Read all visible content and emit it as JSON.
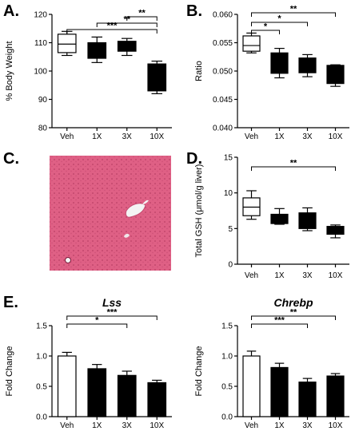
{
  "panels": {
    "A": "A.",
    "B": "B.",
    "C": "C.",
    "D": "D.",
    "E": "E."
  },
  "chart_data": [
    {
      "id": "A",
      "type": "box",
      "ylabel": "% Body Weight",
      "ylim": [
        80,
        120
      ],
      "yticks": [
        80,
        90,
        100,
        110,
        120
      ],
      "categories": [
        "Veh",
        "1X",
        "3X",
        "10X"
      ],
      "boxes": [
        {
          "min": 105.5,
          "q1": 106.5,
          "median": 109.5,
          "q3": 113,
          "max": 114
        },
        {
          "min": 103,
          "q1": 104.5,
          "median": 108,
          "q3": 110,
          "max": 112
        },
        {
          "min": 105.5,
          "q1": 107,
          "median": 108.5,
          "q3": 110.5,
          "max": 111.5
        },
        {
          "min": 92,
          "q1": 93,
          "median": 102,
          "q3": 102.5,
          "max": 103.5
        }
      ],
      "fills": [
        "#ffffff",
        "#000000",
        "#000000",
        "#000000"
      ],
      "significance": [
        {
          "from": 0,
          "to": 3,
          "label": "***"
        },
        {
          "from": 1,
          "to": 3,
          "label": "**"
        },
        {
          "from": 2,
          "to": 3,
          "label": "**"
        }
      ]
    },
    {
      "id": "B",
      "type": "box",
      "ylabel": "Ratio",
      "ylim": [
        0.04,
        0.06
      ],
      "yticks": [
        0.04,
        0.045,
        0.05,
        0.055,
        0.06
      ],
      "ytick_labels": [
        "0.040",
        "0.045",
        "0.050",
        "0.055",
        "0.060"
      ],
      "categories": [
        "Veh",
        "1X",
        "3X",
        "10X"
      ],
      "boxes": [
        {
          "min": 0.0532,
          "q1": 0.0535,
          "median": 0.0545,
          "q3": 0.0562,
          "max": 0.0567
        },
        {
          "min": 0.0488,
          "q1": 0.0496,
          "median": 0.0515,
          "q3": 0.0532,
          "max": 0.054
        },
        {
          "min": 0.049,
          "q1": 0.0497,
          "median": 0.0512,
          "q3": 0.0523,
          "max": 0.0529
        },
        {
          "min": 0.0473,
          "q1": 0.0478,
          "median": 0.0495,
          "q3": 0.051,
          "max": 0.0511
        }
      ],
      "fills": [
        "#ffffff",
        "#000000",
        "#000000",
        "#000000"
      ],
      "significance": [
        {
          "from": 0,
          "to": 1,
          "label": "*"
        },
        {
          "from": 0,
          "to": 2,
          "label": "*"
        },
        {
          "from": 0,
          "to": 3,
          "label": "**"
        }
      ]
    },
    {
      "id": "D",
      "type": "box",
      "ylabel": "Total GSH (μmol/g liver)",
      "ylim": [
        0,
        15
      ],
      "yticks": [
        0,
        5,
        10,
        15
      ],
      "categories": [
        "Veh",
        "1X",
        "3X",
        "10X"
      ],
      "boxes": [
        {
          "min": 6.3,
          "q1": 6.8,
          "median": 8.0,
          "q3": 9.3,
          "max": 10.3
        },
        {
          "min": 5.6,
          "q1": 5.7,
          "median": 6.2,
          "q3": 7.0,
          "max": 7.8
        },
        {
          "min": 4.7,
          "q1": 5.0,
          "median": 6.0,
          "q3": 7.2,
          "max": 7.9
        },
        {
          "min": 3.7,
          "q1": 4.2,
          "median": 4.9,
          "q3": 5.3,
          "max": 5.5
        }
      ],
      "fills": [
        "#ffffff",
        "#000000",
        "#000000",
        "#000000"
      ],
      "significance": [
        {
          "from": 0,
          "to": 3,
          "label": "**"
        }
      ]
    },
    {
      "id": "E-Lss",
      "type": "bar",
      "title": "Lss",
      "ylabel": "Fold Change",
      "ylim": [
        0,
        1.5
      ],
      "yticks": [
        0,
        0.5,
        1.0,
        1.5
      ],
      "ytick_labels": [
        "0.0",
        "0.5",
        "1.0",
        "1.5"
      ],
      "categories": [
        "Veh",
        "1X",
        "3X",
        "10X"
      ],
      "values": [
        1.0,
        0.79,
        0.68,
        0.56
      ],
      "errors": [
        0.06,
        0.07,
        0.07,
        0.04
      ],
      "fills": [
        "#ffffff",
        "#000000",
        "#000000",
        "#000000"
      ],
      "significance": [
        {
          "from": 0,
          "to": 2,
          "label": "*"
        },
        {
          "from": 0,
          "to": 3,
          "label": "***"
        }
      ]
    },
    {
      "id": "E-Chrebp",
      "type": "bar",
      "title": "Chrebp",
      "ylabel": "Fold Change",
      "ylim": [
        0,
        1.5
      ],
      "yticks": [
        0,
        0.5,
        1.0,
        1.5
      ],
      "ytick_labels": [
        "0.0",
        "0.5",
        "1.0",
        "1.5"
      ],
      "categories": [
        "Veh",
        "1X",
        "3X",
        "10X"
      ],
      "values": [
        1.0,
        0.81,
        0.57,
        0.67
      ],
      "errors": [
        0.08,
        0.07,
        0.06,
        0.04
      ],
      "fills": [
        "#ffffff",
        "#000000",
        "#000000",
        "#000000"
      ],
      "significance": [
        {
          "from": 0,
          "to": 2,
          "label": "***"
        },
        {
          "from": 0,
          "to": 3,
          "label": "**"
        }
      ]
    }
  ],
  "histology": {
    "tissue_color": "#d9557a",
    "stain_color": "#b8305a"
  }
}
